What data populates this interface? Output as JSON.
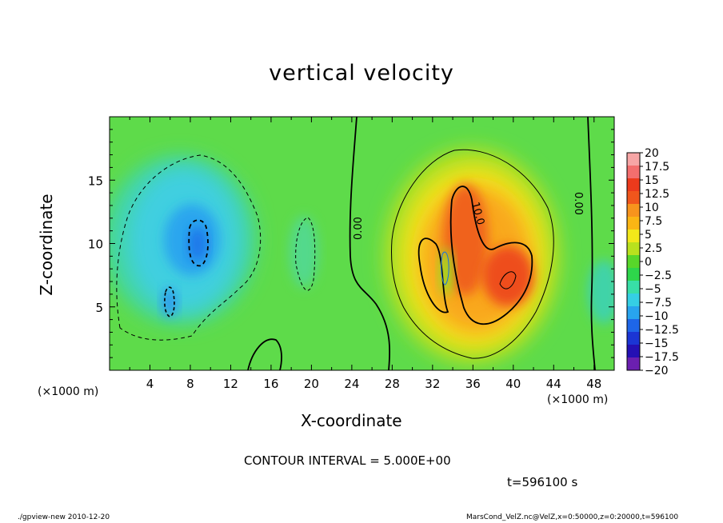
{
  "chart_data": {
    "type": "heatmap",
    "title": "vertical velocity",
    "xlabel": "X-coordinate",
    "ylabel": "Z-coordinate",
    "x_unit_label": "(×1000 m)",
    "x_ticks": [
      "4",
      "8",
      "12",
      "16",
      "20",
      "24",
      "28",
      "32",
      "36",
      "40",
      "44",
      "48"
    ],
    "y_ticks": [
      "5",
      "10",
      "15"
    ],
    "xlim": [
      0,
      50
    ],
    "ylim": [
      0,
      20
    ],
    "colorbar_labels": [
      "20",
      "17.5",
      "15",
      "12.5",
      "10",
      "7.5",
      "5",
      "2.5",
      "0",
      "−2.5",
      "−5",
      "−7.5",
      "−10",
      "−12.5",
      "−15",
      "−17.5",
      "−20"
    ],
    "colorbar_colors": [
      "#f7a6a6",
      "#f36e6e",
      "#ec3a1c",
      "#f0561c",
      "#f7941d",
      "#fbb614",
      "#f2e81a",
      "#b9e11e",
      "#58d72a",
      "#2ed64b",
      "#38dea7",
      "#35cfe4",
      "#28a4ee",
      "#1e66e8",
      "#1b35d4",
      "#2410b4",
      "#6b1fb0"
    ],
    "contour_labels": [
      "0.00",
      "10.0",
      "0.00"
    ],
    "contour_interval_text": "CONTOUR INTERVAL = 5.000E+00",
    "time_text": "t=596100 s",
    "features": [
      {
        "kind": "downdraft",
        "x_center": 8,
        "z_center": 10,
        "peak": -12
      },
      {
        "kind": "updraft",
        "x_center": 37,
        "z_center": 9,
        "peak": 14
      }
    ]
  },
  "footer": {
    "left": "./gpview-new  2010-12-20",
    "right": "MarsCond_VelZ.nc@VelZ,x=0:50000,z=0:20000,t=596100"
  }
}
